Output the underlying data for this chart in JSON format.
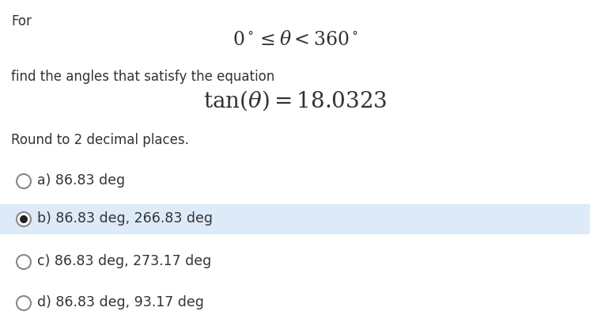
{
  "title_line1": "For",
  "inequality_latex": "$0^\\circ \\leq \\theta < 360^\\circ$",
  "subtitle": "find the angles that satisfy the equation",
  "equation_latex": "$\\tan(\\theta) = 18.0323$",
  "round_text": "Round to 2 decimal places.",
  "options": [
    {
      "label": "a)",
      "text": "86.83 deg",
      "selected": false,
      "highlighted": false
    },
    {
      "label": "b)",
      "text": "86.83 deg, 266.83 deg",
      "selected": true,
      "highlighted": true
    },
    {
      "label": "c)",
      "text": "86.83 deg, 273.17 deg",
      "selected": false,
      "highlighted": false
    },
    {
      "label": "d)",
      "text": "86.83 deg, 93.17 deg",
      "selected": false,
      "highlighted": false
    }
  ],
  "background_color": "#ffffff",
  "highlight_color": "#ddeaf7",
  "text_color": "#333333",
  "circle_edge_color": "#888888",
  "selected_dot_color": "#222222",
  "fig_width": 7.46,
  "fig_height": 4.22,
  "dpi": 100
}
